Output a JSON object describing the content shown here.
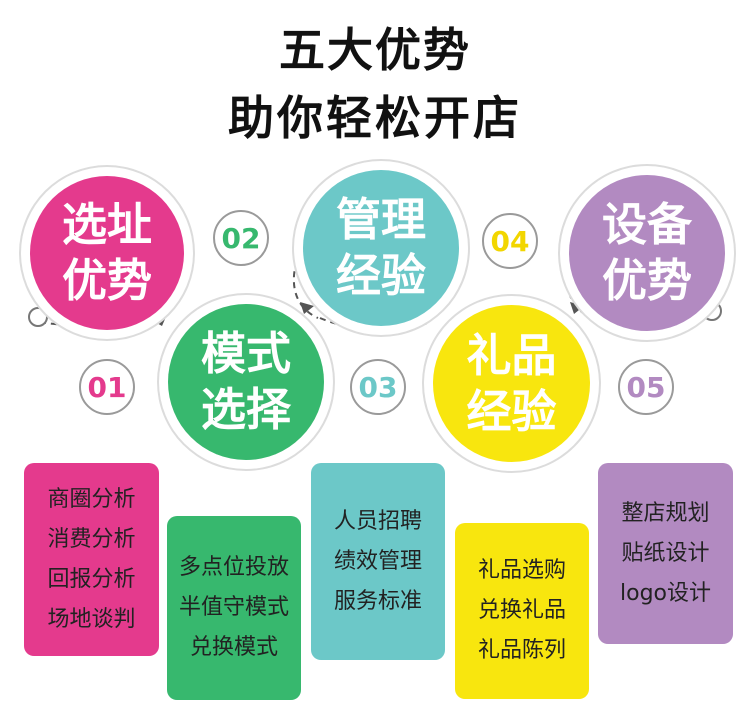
{
  "header": {
    "line1": "五大优势",
    "line2": "助你轻松开店"
  },
  "colors": {
    "pink": "#e43a8d",
    "green": "#37b86e",
    "teal": "#6cc8c8",
    "yellow": "#f8e60e",
    "purple": "#b28ac1"
  },
  "steps": [
    {
      "num": "01",
      "circle_line1": "选址",
      "circle_line2": "优势",
      "items": [
        "商圈分析",
        "消费分析",
        "回报分析",
        "场地谈判"
      ]
    },
    {
      "num": "02",
      "circle_line1": "模式",
      "circle_line2": "选择",
      "items": [
        "多点位投放",
        "半值守模式",
        "兑换模式"
      ]
    },
    {
      "num": "03",
      "circle_line1": "管理",
      "circle_line2": "经验",
      "items": [
        "人员招聘",
        "绩效管理",
        "服务标准"
      ]
    },
    {
      "num": "04",
      "circle_line1": "礼品",
      "circle_line2": "经验",
      "items": [
        "礼品选购",
        "兑换礼品",
        "礼品陈列"
      ]
    },
    {
      "num": "05",
      "circle_line1": "设备",
      "circle_line2": "优势",
      "items": [
        "整店规划",
        "贴纸设计",
        "logo设计"
      ]
    }
  ]
}
